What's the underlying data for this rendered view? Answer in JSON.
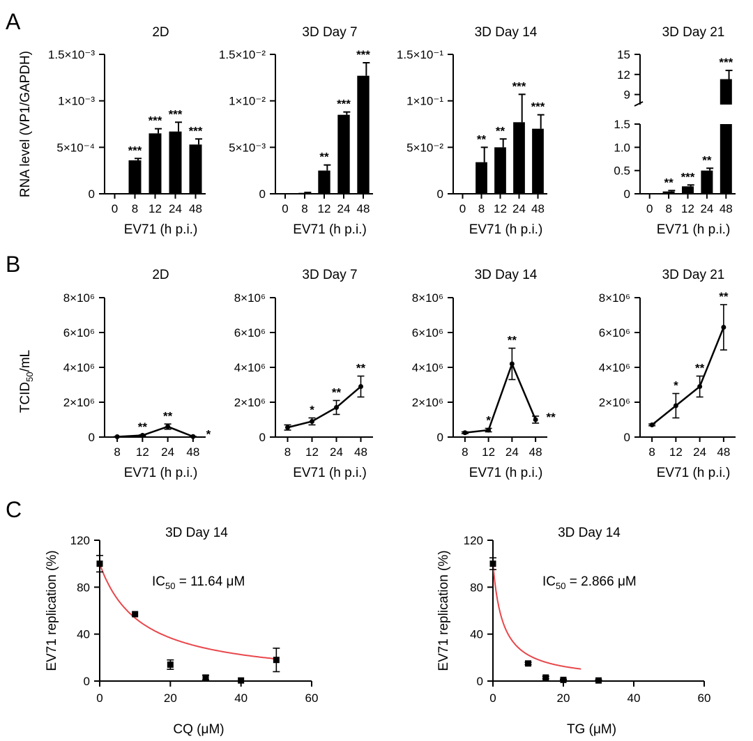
{
  "panel_labels": [
    "A",
    "B",
    "C"
  ],
  "chart_data": [
    {
      "id": "A1",
      "panel": "A",
      "type": "bar",
      "title": "2D",
      "ylabel": "RNA level (VP1/GAPDH)",
      "xlabel": "EV71 (h p.i.)",
      "categories": [
        "0",
        "8",
        "12",
        "24",
        "48"
      ],
      "values": [
        0,
        0.00036,
        0.00065,
        0.00067,
        0.00053
      ],
      "errors": [
        0,
        2e-05,
        5e-05,
        0.0001,
        6e-05
      ],
      "significance": [
        "",
        "***",
        "***",
        "***",
        "***"
      ],
      "ylim": [
        0,
        0.0015
      ],
      "yticks": [
        0,
        0.0005,
        0.001,
        0.0015
      ],
      "ytick_labels": [
        "0",
        "5×10⁻⁴",
        "1×10⁻³",
        "1.5×10⁻³"
      ]
    },
    {
      "id": "A2",
      "panel": "A",
      "type": "bar",
      "title": "3D Day 7",
      "xlabel": "EV71 (h p.i.)",
      "categories": [
        "0",
        "8",
        "12",
        "24",
        "48"
      ],
      "values": [
        0,
        0.0001,
        0.0025,
        0.0085,
        0.0127
      ],
      "errors": [
        0,
        5e-05,
        0.0006,
        0.0003,
        0.0014
      ],
      "significance": [
        "",
        "",
        "**",
        "***",
        "***"
      ],
      "ylim": [
        0,
        0.015
      ],
      "yticks": [
        0,
        0.005,
        0.01,
        0.015
      ],
      "ytick_labels": [
        "0",
        "5×10⁻³",
        "1×10⁻²",
        "1.5×10⁻²"
      ]
    },
    {
      "id": "A3",
      "panel": "A",
      "type": "bar",
      "title": "3D Day 14",
      "xlabel": "EV71 (h p.i.)",
      "categories": [
        "0",
        "8",
        "12",
        "24",
        "48"
      ],
      "values": [
        0,
        0.034,
        0.05,
        0.077,
        0.07
      ],
      "errors": [
        0,
        0.016,
        0.009,
        0.03,
        0.015
      ],
      "significance": [
        "",
        "**",
        "**",
        "***",
        "***"
      ],
      "ylim": [
        0,
        0.15
      ],
      "yticks": [
        0,
        0.05,
        0.1,
        0.15
      ],
      "ytick_labels": [
        "0",
        "5×10⁻²",
        "1×10⁻¹",
        "1.5×10⁻¹"
      ]
    },
    {
      "id": "A4",
      "panel": "A",
      "type": "bar",
      "title": "3D Day 21",
      "xlabel": "EV71 (h p.i.)",
      "categories": [
        "0",
        "8",
        "12",
        "24",
        "48"
      ],
      "values": [
        0,
        0.05,
        0.16,
        0.5,
        11.3
      ],
      "errors": [
        0,
        0.02,
        0.03,
        0.05,
        1.3
      ],
      "significance": [
        "",
        "**",
        "***",
        "**",
        "***"
      ],
      "axis_break": {
        "lower_range": [
          0,
          1.5
        ],
        "upper_range": [
          7.5,
          15
        ]
      },
      "yticks_lower": [
        0,
        0.5,
        1.0,
        1.5
      ],
      "ytick_labels_lower": [
        "0",
        "0.5",
        "1.0",
        "1.5"
      ],
      "yticks_upper": [
        9,
        12,
        15
      ],
      "ytick_labels_upper": [
        "9",
        "12",
        "15"
      ]
    },
    {
      "id": "B1",
      "panel": "B",
      "type": "line",
      "title": "2D",
      "ylabel": "TCID50/mL",
      "xlabel": "EV71 (h p.i.)",
      "categories": [
        "8",
        "12",
        "24",
        "48"
      ],
      "values": [
        20000,
        100000,
        600000,
        30000
      ],
      "errors": [
        10000,
        30000,
        150000,
        10000
      ],
      "significance": [
        "",
        "**",
        "**",
        "*"
      ],
      "ylim": [
        0,
        8000000
      ],
      "yticks": [
        0,
        2000000,
        4000000,
        6000000,
        8000000
      ],
      "ytick_labels": [
        "0",
        "2×10⁶",
        "4×10⁶",
        "6×10⁶",
        "8×10⁶"
      ]
    },
    {
      "id": "B2",
      "panel": "B",
      "type": "line",
      "title": "3D Day 7",
      "xlabel": "EV71 (h p.i.)",
      "categories": [
        "8",
        "12",
        "24",
        "48"
      ],
      "values": [
        550000,
        900000,
        1700000,
        2900000
      ],
      "errors": [
        150000,
        200000,
        400000,
        600000
      ],
      "significance": [
        "",
        "*",
        "**",
        "**"
      ],
      "ylim": [
        0,
        8000000
      ],
      "yticks": [
        0,
        2000000,
        4000000,
        6000000,
        8000000
      ],
      "ytick_labels": [
        "0",
        "2×10⁶",
        "4×10⁶",
        "6×10⁶",
        "8×10⁶"
      ]
    },
    {
      "id": "B3",
      "panel": "B",
      "type": "line",
      "title": "3D Day 14",
      "xlabel": "EV71 (h p.i.)",
      "categories": [
        "8",
        "12",
        "24",
        "48"
      ],
      "values": [
        250000,
        400000,
        4200000,
        1000000
      ],
      "errors": [
        50000,
        100000,
        900000,
        200000
      ],
      "significance": [
        "",
        "*",
        "**",
        "**"
      ],
      "ylim": [
        0,
        8000000
      ],
      "yticks": [
        0,
        2000000,
        4000000,
        6000000,
        8000000
      ],
      "ytick_labels": [
        "0",
        "2×10⁶",
        "4×10⁶",
        "6×10⁶",
        "8×10⁶"
      ]
    },
    {
      "id": "B4",
      "panel": "B",
      "type": "line",
      "title": "3D Day 21",
      "xlabel": "EV71 (h p.i.)",
      "categories": [
        "8",
        "12",
        "24",
        "48"
      ],
      "values": [
        700000,
        1800000,
        2900000,
        6300000
      ],
      "errors": [
        50000,
        700000,
        600000,
        1300000
      ],
      "significance": [
        "",
        "*",
        "**",
        "**"
      ],
      "ylim": [
        0,
        8000000
      ],
      "yticks": [
        0,
        2000000,
        4000000,
        6000000,
        8000000
      ],
      "ytick_labels": [
        "0",
        "2×10⁶",
        "4×10⁶",
        "6×10⁶",
        "8×10⁶"
      ]
    },
    {
      "id": "C1",
      "panel": "C",
      "type": "scatter",
      "title": "3D Day 14",
      "ylabel": "EV71 replication (%)",
      "xlabel": "CQ (μM)",
      "annotation": "IC50 = 11.64 μM",
      "annotation_parts": {
        "prefix": "IC",
        "sub": "50",
        "suffix": " = 11.64 μM"
      },
      "ic50": 11.64,
      "x": [
        0,
        10,
        20,
        30,
        40,
        50
      ],
      "y": [
        100,
        57,
        14,
        3,
        0.5,
        18
      ],
      "errors": [
        7,
        0,
        4,
        2,
        0,
        10
      ],
      "fit_color": "#e8474b",
      "fit_xmax": 50,
      "xlim": [
        0,
        60
      ],
      "ylim": [
        0,
        120
      ],
      "xticks": [
        0,
        20,
        40,
        60
      ],
      "yticks": [
        0,
        40,
        80,
        120
      ]
    },
    {
      "id": "C2",
      "panel": "C",
      "type": "scatter",
      "title": "3D Day 14",
      "ylabel": "EV71 replication (%)",
      "xlabel": "TG (μM)",
      "annotation": "IC50 = 2.866 μM",
      "annotation_parts": {
        "prefix": "IC",
        "sub": "50",
        "suffix": " = 2.866 μM"
      },
      "ic50": 2.866,
      "x": [
        0,
        10,
        15,
        20,
        30
      ],
      "y": [
        100,
        15,
        3,
        1,
        0.5
      ],
      "errors": [
        5,
        1,
        1,
        0.5,
        0.5
      ],
      "fit_color": "#e8474b",
      "fit_xmax": 25,
      "xlim": [
        0,
        60
      ],
      "ylim": [
        0,
        120
      ],
      "xticks": [
        0,
        20,
        40,
        60
      ],
      "yticks": [
        0,
        40,
        80,
        120
      ]
    }
  ]
}
